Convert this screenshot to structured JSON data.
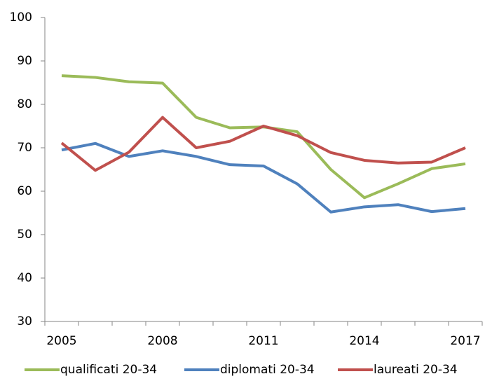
{
  "chart_data": {
    "type": "line",
    "categories": [
      "2005",
      null,
      null,
      "2008",
      null,
      null,
      "2011",
      null,
      null,
      "2014",
      null,
      null,
      "2017"
    ],
    "series": [
      {
        "name": "qualificati 20-34",
        "color": "#9bbb59",
        "values": [
          86.6,
          86.2,
          85.2,
          84.9,
          77.0,
          74.6,
          74.8,
          73.7,
          65.0,
          58.5,
          61.7,
          65.2,
          66.3
        ]
      },
      {
        "name": "diplomati 20-34",
        "color": "#4f81bd",
        "values": [
          69.5,
          71.0,
          68.0,
          69.3,
          68.0,
          66.1,
          65.8,
          61.7,
          55.2,
          56.4,
          56.9,
          55.3,
          56.0
        ]
      },
      {
        "name": "laureati 20-34",
        "color": "#c0504d",
        "values": [
          71.1,
          64.8,
          69.0,
          77.0,
          70.0,
          71.5,
          75.0,
          72.8,
          68.9,
          67.1,
          66.5,
          66.7,
          70.0
        ]
      }
    ],
    "ylim": [
      30,
      100
    ],
    "yticks": [
      30,
      40,
      50,
      60,
      70,
      80,
      90,
      100
    ],
    "grid": false,
    "legend": "bottom"
  }
}
